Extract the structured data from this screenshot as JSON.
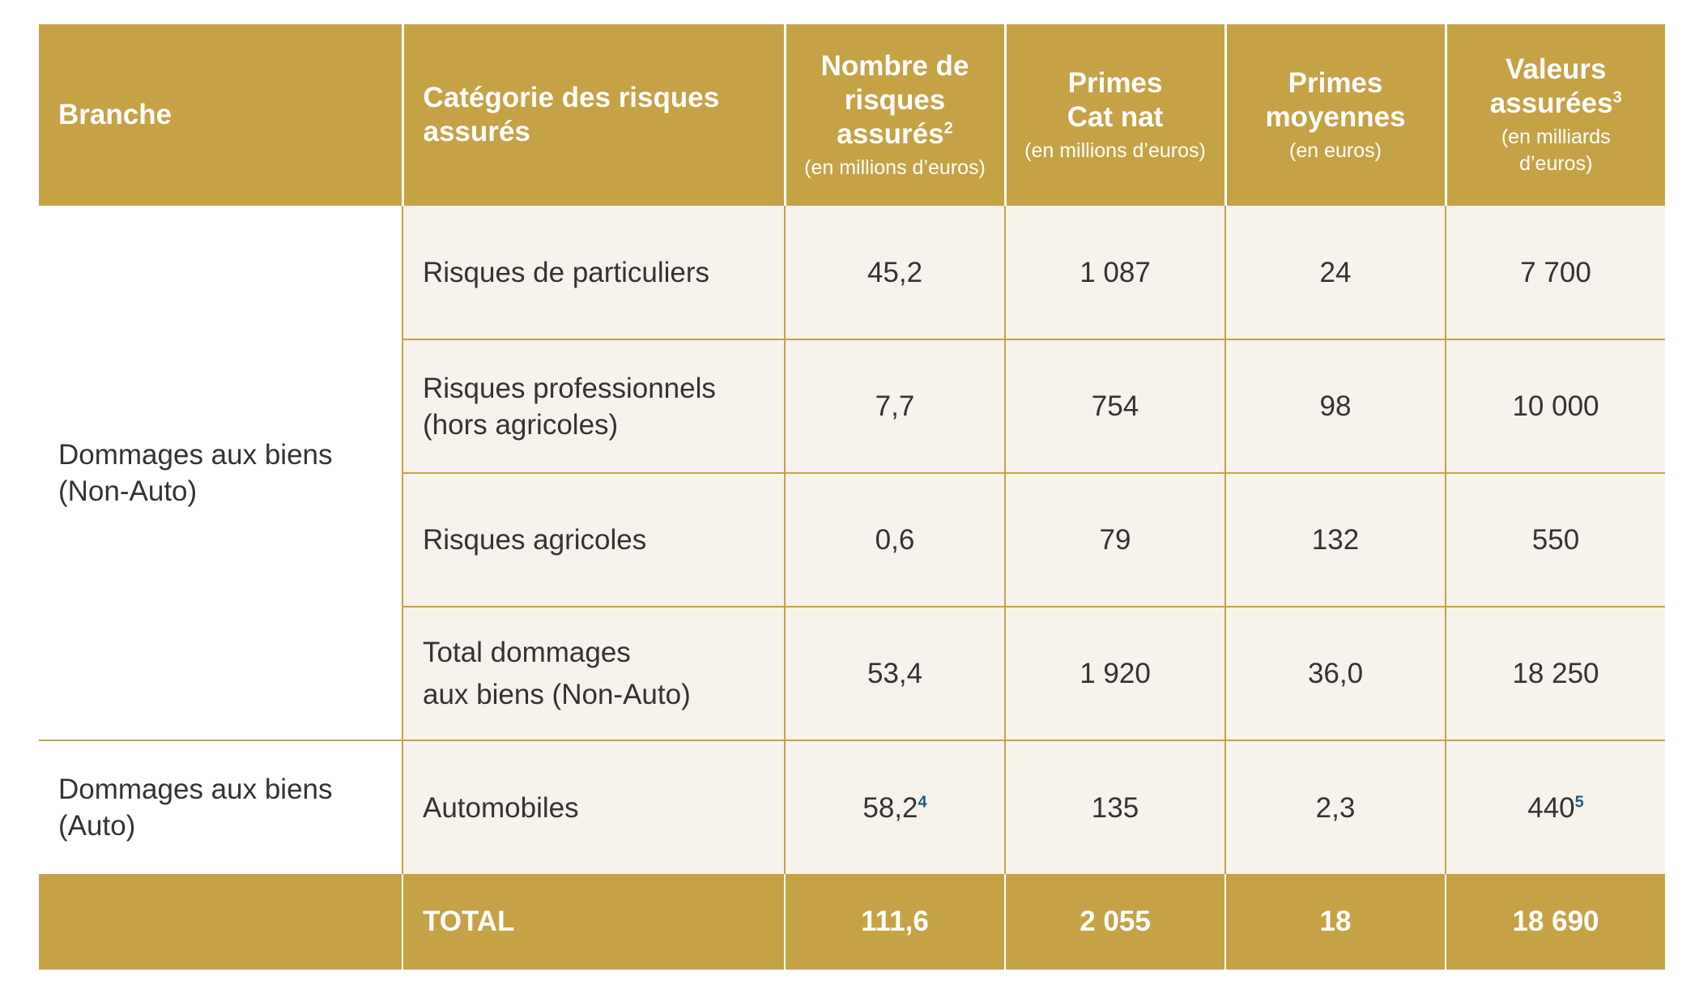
{
  "colors": {
    "header_bg": "#c6a246",
    "body_bg": "#f7f3ec",
    "text": "#333333",
    "footnote": "#1c5b84"
  },
  "header": {
    "branche": "Branche",
    "categorie": "Catégorie des risques assurés",
    "nombre": {
      "label": "Nombre de risques assurés",
      "sup": "2",
      "unit": "(en millions d’euros)"
    },
    "primes_catnat": {
      "label_line1": "Primes",
      "label_line2": "Cat nat",
      "unit": "(en millions d’euros)"
    },
    "primes_moyennes": {
      "label_line1": "Primes",
      "label_line2": "moyennes",
      "unit": "(en euros)"
    },
    "valeurs": {
      "label": "Valeurs assurées",
      "sup": "3",
      "unit": "(en milliards d’euros)"
    }
  },
  "branches": {
    "non_auto": {
      "line1": "Dommages aux biens",
      "line2": "(Non-Auto)"
    },
    "auto": {
      "line1": "Dommages aux biens",
      "line2": "(Auto)"
    }
  },
  "rows": [
    {
      "categorie_line1": "Risques de particuliers",
      "categorie_line2": "",
      "nombre": "45,2",
      "primes": "1 087",
      "moyennes": "24",
      "valeurs": "7 700"
    },
    {
      "categorie_line1": "Risques professionnels",
      "categorie_line2": "(hors agricoles)",
      "nombre": "7,7",
      "primes": "754",
      "moyennes": "98",
      "valeurs": "10 000"
    },
    {
      "categorie_line1": "Risques agricoles",
      "categorie_line2": "",
      "nombre": "0,6",
      "primes": "79",
      "moyennes": "132",
      "valeurs": "550"
    },
    {
      "categorie_line1": "Total dommages",
      "categorie_line2": "aux biens (Non-Auto)",
      "nombre": "53,4",
      "primes": "1 920",
      "moyennes": "36,0",
      "valeurs": "18 250"
    },
    {
      "categorie_line1": "Automobiles",
      "categorie_line2": "",
      "nombre": "58,2",
      "nombre_sup": "4",
      "primes": "135",
      "moyennes": "2,3",
      "valeurs": "440",
      "valeurs_sup": "5"
    }
  ],
  "total": {
    "label": "TOTAL",
    "nombre": "111,6",
    "primes": "2 055",
    "moyennes": "18",
    "valeurs": "18 690"
  }
}
